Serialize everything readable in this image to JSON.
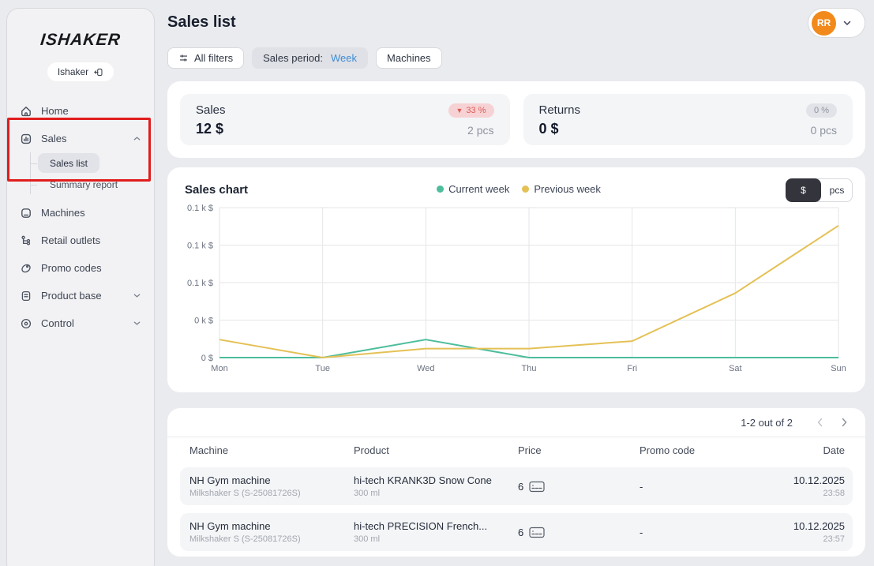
{
  "colors": {
    "page_bg": "#eaebee",
    "inner_card_bg": "#f4f5f7",
    "current_week": "#4dbd9c",
    "previous_week": "#e4c155",
    "decrease_badge_text": "#dd5a56",
    "avatar_bg": "#f28a1b",
    "link_blue": "#3f8cd6",
    "annotation": "#e11d1d"
  },
  "annotation": {
    "color": "#e11d1d",
    "target": "sales-menu-group"
  },
  "sidebar": {
    "logo": "ISHAKER",
    "org_badge": {
      "label": "Ishaker",
      "icon": "switch-icon"
    },
    "items": [
      {
        "label": "Home",
        "icon": "home-icon"
      },
      {
        "label": "Sales",
        "icon": "sales-icon",
        "expanded": true
      },
      {
        "label": "Machines",
        "icon": "machines-icon"
      },
      {
        "label": "Retail outlets",
        "icon": "retail-outlets-icon"
      },
      {
        "label": "Promo codes",
        "icon": "promo-codes-icon"
      },
      {
        "label": "Product base",
        "icon": "product-base-icon",
        "collapsible": true
      },
      {
        "label": "Control",
        "icon": "control-icon",
        "collapsible": true
      }
    ],
    "sales_subitems": [
      {
        "label": "Sales list",
        "active": true
      },
      {
        "label": "Summary report",
        "active": false
      }
    ]
  },
  "header": {
    "title": "Sales list",
    "filters": {
      "all_filters": "All filters",
      "period_label": "Sales period:",
      "period_value": "Week",
      "machines": "Machines"
    },
    "avatar_initials": "RR"
  },
  "stats": {
    "sales": {
      "label": "Sales",
      "value": "12 $",
      "change": "33 %",
      "change_dir": "down",
      "qty": "2 pcs"
    },
    "returns": {
      "label": "Returns",
      "value": "0 $",
      "change": "0 %",
      "change_dir": "flat",
      "qty": "0 pcs"
    }
  },
  "chart_card": {
    "title": "Sales chart",
    "toggle": {
      "money": "$",
      "pcs": "pcs",
      "selected": "$"
    }
  },
  "chart_data": {
    "type": "line",
    "title": "Sales chart",
    "x": [
      "Mon",
      "Tue",
      "Wed",
      "Thu",
      "Fri",
      "Sat",
      "Sun"
    ],
    "series": [
      {
        "name": "Current week",
        "color": "#4dbd9c",
        "values": [
          0,
          0,
          12,
          0,
          0,
          0,
          0
        ]
      },
      {
        "name": "Previous week",
        "color": "#e4c155",
        "values": [
          12,
          0,
          6,
          6,
          11,
          43,
          88
        ]
      }
    ],
    "unit": "$",
    "ylim": [
      0,
      100
    ],
    "y_ticks": [
      0,
      25,
      50,
      75,
      100
    ],
    "y_tick_labels": [
      "0 $",
      "0 k $",
      "0.1 k $",
      "0.1 k $",
      "0.1 k $"
    ],
    "grid": true,
    "legend_position": "top-center"
  },
  "table": {
    "pagination": {
      "text": "1-2 out of 2",
      "prev_icon": "chevron-left-icon",
      "next_icon": "chevron-right-icon"
    },
    "columns": [
      "Machine",
      "Product",
      "Price",
      "Promo code",
      "Date"
    ],
    "rows": [
      {
        "machine": "NH Gym machine",
        "machine_sub": "Milkshaker S (S-25081726S)",
        "product": "hi-tech KRANK3D Snow Cone",
        "product_sub": "300 ml",
        "price": "6",
        "promo": "-",
        "date": "10.12.2025",
        "time": "23:58"
      },
      {
        "machine": "NH Gym machine",
        "machine_sub": "Milkshaker S (S-25081726S)",
        "product": "hi-tech PRECISION French...",
        "product_sub": "300 ml",
        "price": "6",
        "promo": "-",
        "date": "10.12.2025",
        "time": "23:57"
      }
    ]
  }
}
